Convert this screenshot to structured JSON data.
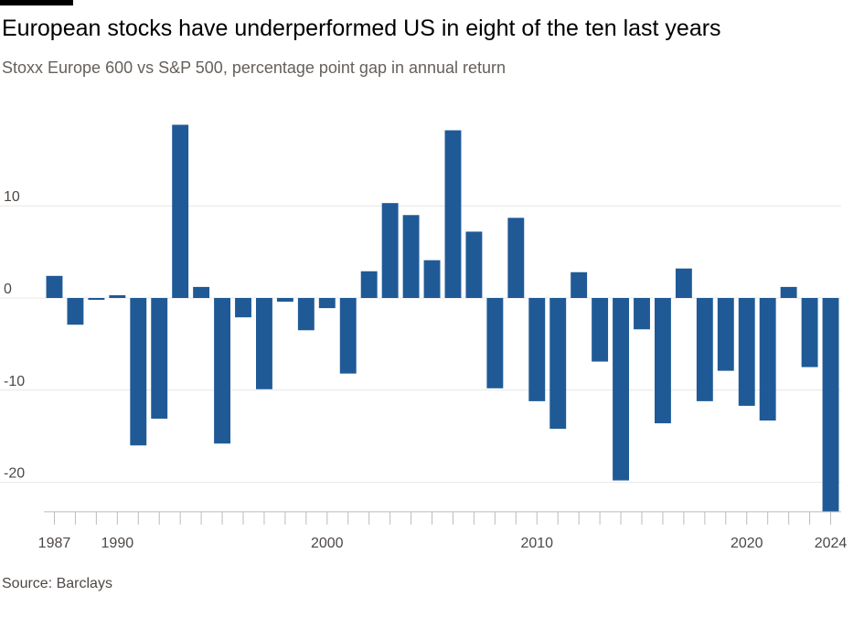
{
  "title": "European stocks have underperformed US in eight of the ten last years",
  "subtitle": "Stoxx Europe 600 vs S&P 500, percentage point gap in annual return",
  "source": "Source: Barclays",
  "colors": {
    "bar": "#1f5a96",
    "grid": "#e9e6e4",
    "axis": "#bfbab6"
  },
  "chart_data": {
    "type": "bar",
    "title": "European stocks have underperformed US in eight of the ten last years",
    "subtitle": "Stoxx Europe 600 vs S&P 500, percentage point gap in annual return",
    "xlabel": "",
    "ylabel": "",
    "ylim": [
      -23.2,
      19
    ],
    "yticks": [
      10,
      0,
      -10,
      -20
    ],
    "ytick_labels": [
      "10",
      "0",
      "-10",
      "-20"
    ],
    "xtick_labels": [
      "1987",
      "1990",
      "2000",
      "2010",
      "2020",
      "2024"
    ],
    "grid": true,
    "categories": [
      1987,
      1988,
      1989,
      1990,
      1991,
      1992,
      1993,
      1994,
      1995,
      1996,
      1997,
      1998,
      1999,
      2000,
      2001,
      2002,
      2003,
      2004,
      2005,
      2006,
      2007,
      2008,
      2009,
      2010,
      2011,
      2012,
      2013,
      2014,
      2015,
      2016,
      2017,
      2018,
      2019,
      2020,
      2021,
      2022,
      2023,
      2024
    ],
    "values": [
      2.4,
      -2.9,
      -0.2,
      0.3,
      -16.0,
      -13.1,
      18.8,
      1.2,
      -15.8,
      -2.1,
      -9.9,
      -0.4,
      -3.5,
      -1.1,
      -8.2,
      2.9,
      10.3,
      9.0,
      4.1,
      18.2,
      7.2,
      -9.8,
      8.7,
      -11.2,
      -14.2,
      2.8,
      -6.9,
      -19.8,
      -3.4,
      -13.6,
      3.2,
      -11.2,
      -7.9,
      -11.7,
      -13.3,
      1.2,
      -7.5,
      -23.2
    ]
  }
}
